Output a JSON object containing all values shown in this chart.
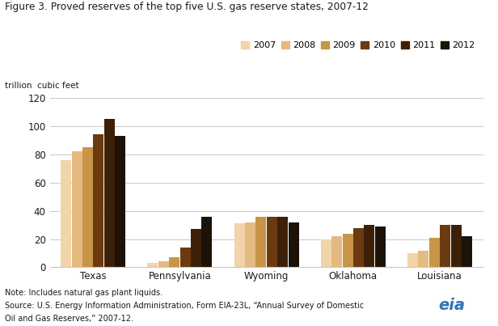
{
  "title": "Figure 3. Proved reserves of the top five U.S. gas reserve states, 2007-12",
  "ylabel": "trillion  cubic feet",
  "ylim": [
    0,
    120
  ],
  "yticks": [
    0,
    20,
    40,
    60,
    80,
    100,
    120
  ],
  "categories": [
    "Texas",
    "Pennsylvania",
    "Wyoming",
    "Oklahoma",
    "Louisiana"
  ],
  "years": [
    "2007",
    "2008",
    "2009",
    "2010",
    "2011",
    "2012"
  ],
  "colors": [
    "#f2d4aa",
    "#e5ba80",
    "#c89448",
    "#6b3a10",
    "#3d2008",
    "#1c1208"
  ],
  "values": {
    "Texas": [
      76,
      82,
      85,
      94,
      105,
      93
    ],
    "Pennsylvania": [
      3,
      4,
      7,
      14,
      27,
      36
    ],
    "Wyoming": [
      31,
      32,
      36,
      36,
      36,
      32
    ],
    "Oklahoma": [
      20,
      22,
      24,
      28,
      30,
      29
    ],
    "Louisiana": [
      10,
      12,
      21,
      30,
      30,
      22
    ]
  },
  "note1": "Note: Includes natural gas plant liquids.",
  "note2": "Source: U.S. Energy Information Administration, Form EIA-23L, “Annual Survey of Domestic",
  "note3": "Oil and Gas Reserves,” 2007-12.",
  "background_color": "#ffffff",
  "grid_color": "#c8c8c8",
  "title_color": "#1a1a1a",
  "axis_color": "#1a1a1a",
  "group_width": 0.75
}
